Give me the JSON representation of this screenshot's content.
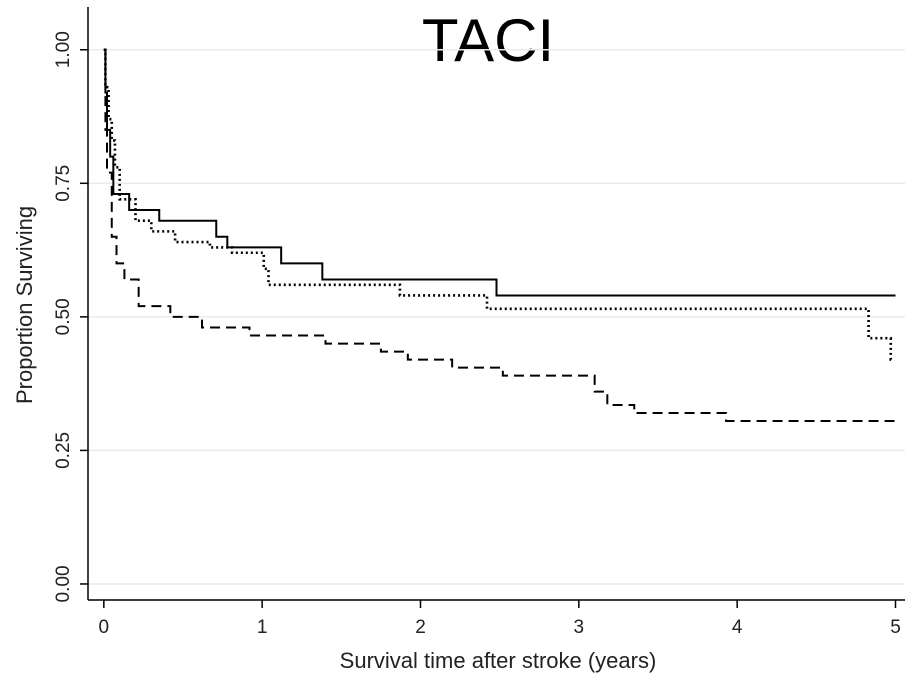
{
  "chart_data": {
    "type": "line",
    "step": true,
    "title": "TACI",
    "x_label": "Survival time after stroke (years)",
    "y_label": "Proportion Surviving",
    "xlim": [
      -0.1,
      5.06
    ],
    "ylim": [
      -0.03,
      1.08
    ],
    "xticks": [
      0,
      1,
      2,
      3,
      4,
      5
    ],
    "yticks": [
      {
        "value": 0,
        "label": "0.00"
      },
      0.25,
      {
        "value": 0.5,
        "label": "0.50"
      },
      0.75,
      {
        "value": 1,
        "label": "1.00"
      }
    ],
    "grid": true,
    "series": [
      {
        "color": "#000000",
        "style": "solid",
        "x": [
          0,
          0.01,
          0.02,
          0.04,
          0.06,
          0.16,
          0.35,
          0.71,
          0.78,
          1.12,
          1.38,
          2.48,
          5.0
        ],
        "values": [
          1.0,
          0.92,
          0.85,
          0.8,
          0.73,
          0.7,
          0.68,
          0.65,
          0.63,
          0.6,
          0.57,
          0.54,
          0.54
        ]
      },
      {
        "color": "#000000",
        "style": "dotted",
        "x": [
          0,
          0.01,
          0.03,
          0.05,
          0.07,
          0.1,
          0.2,
          0.3,
          0.45,
          0.67,
          0.81,
          1.01,
          1.04,
          1.87,
          2.42,
          4.83,
          4.97,
          4.99
        ],
        "values": [
          1.0,
          0.93,
          0.87,
          0.83,
          0.78,
          0.72,
          0.68,
          0.66,
          0.64,
          0.63,
          0.62,
          0.59,
          0.56,
          0.54,
          0.515,
          0.46,
          0.42,
          0.42
        ]
      },
      {
        "color": "#000000",
        "style": "dashed",
        "x": [
          0,
          0.01,
          0.02,
          0.05,
          0.08,
          0.13,
          0.22,
          0.42,
          0.62,
          0.92,
          1.4,
          1.75,
          1.92,
          2.2,
          2.52,
          3.1,
          3.18,
          3.35,
          3.93,
          5.0
        ],
        "values": [
          1.0,
          0.85,
          0.77,
          0.65,
          0.6,
          0.57,
          0.52,
          0.5,
          0.48,
          0.465,
          0.45,
          0.435,
          0.42,
          0.405,
          0.39,
          0.36,
          0.335,
          0.32,
          0.305,
          0.305
        ]
      }
    ]
  }
}
